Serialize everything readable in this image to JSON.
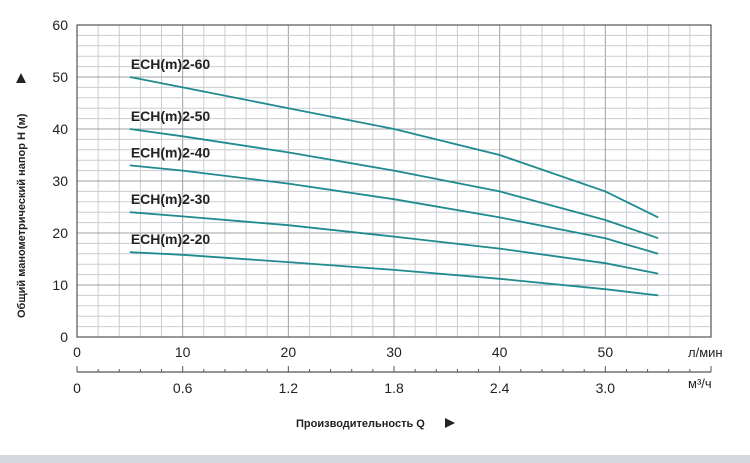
{
  "chart_data": {
    "type": "line",
    "ylabel": "Общий манометрический напор H (м)",
    "xlabel": "Производительность Q",
    "x_unit_primary": "л/мин",
    "x_unit_secondary": "м³/ч",
    "xlim": [
      0,
      60
    ],
    "ylim": [
      0,
      60
    ],
    "grid": true,
    "x_ticks": [
      "0",
      "10",
      "20",
      "30",
      "40",
      "50"
    ],
    "x_ticks_secondary": [
      "0",
      "0.6",
      "1.2",
      "1.8",
      "2.4",
      "3.0"
    ],
    "y_ticks": [
      "0",
      "10",
      "20",
      "30",
      "40",
      "50",
      "60"
    ],
    "line_color": "#1f8a8f",
    "series": [
      {
        "name": "ECH(m)2-60",
        "points": [
          [
            5,
            50
          ],
          [
            10,
            48
          ],
          [
            20,
            44
          ],
          [
            30,
            40
          ],
          [
            40,
            35
          ],
          [
            50,
            28
          ],
          [
            55,
            23
          ]
        ]
      },
      {
        "name": "ECH(m)2-50",
        "points": [
          [
            5,
            40
          ],
          [
            10,
            38.6
          ],
          [
            20,
            35.5
          ],
          [
            30,
            32
          ],
          [
            40,
            28
          ],
          [
            50,
            22.5
          ],
          [
            55,
            19
          ]
        ]
      },
      {
        "name": "ECH(m)2-40",
        "points": [
          [
            5,
            33
          ],
          [
            10,
            32
          ],
          [
            20,
            29.5
          ],
          [
            30,
            26.5
          ],
          [
            40,
            23
          ],
          [
            50,
            19
          ],
          [
            55,
            16
          ]
        ]
      },
      {
        "name": "ECH(m)2-30",
        "points": [
          [
            5,
            24
          ],
          [
            10,
            23.2
          ],
          [
            20,
            21.5
          ],
          [
            30,
            19.3
          ],
          [
            40,
            17
          ],
          [
            50,
            14.2
          ],
          [
            55,
            12.2
          ]
        ]
      },
      {
        "name": "ECH(m)2-20",
        "points": [
          [
            5,
            16.3
          ],
          [
            10,
            15.8
          ],
          [
            20,
            14.4
          ],
          [
            30,
            12.9
          ],
          [
            40,
            11.2
          ],
          [
            50,
            9.2
          ],
          [
            55,
            8
          ]
        ]
      }
    ]
  }
}
